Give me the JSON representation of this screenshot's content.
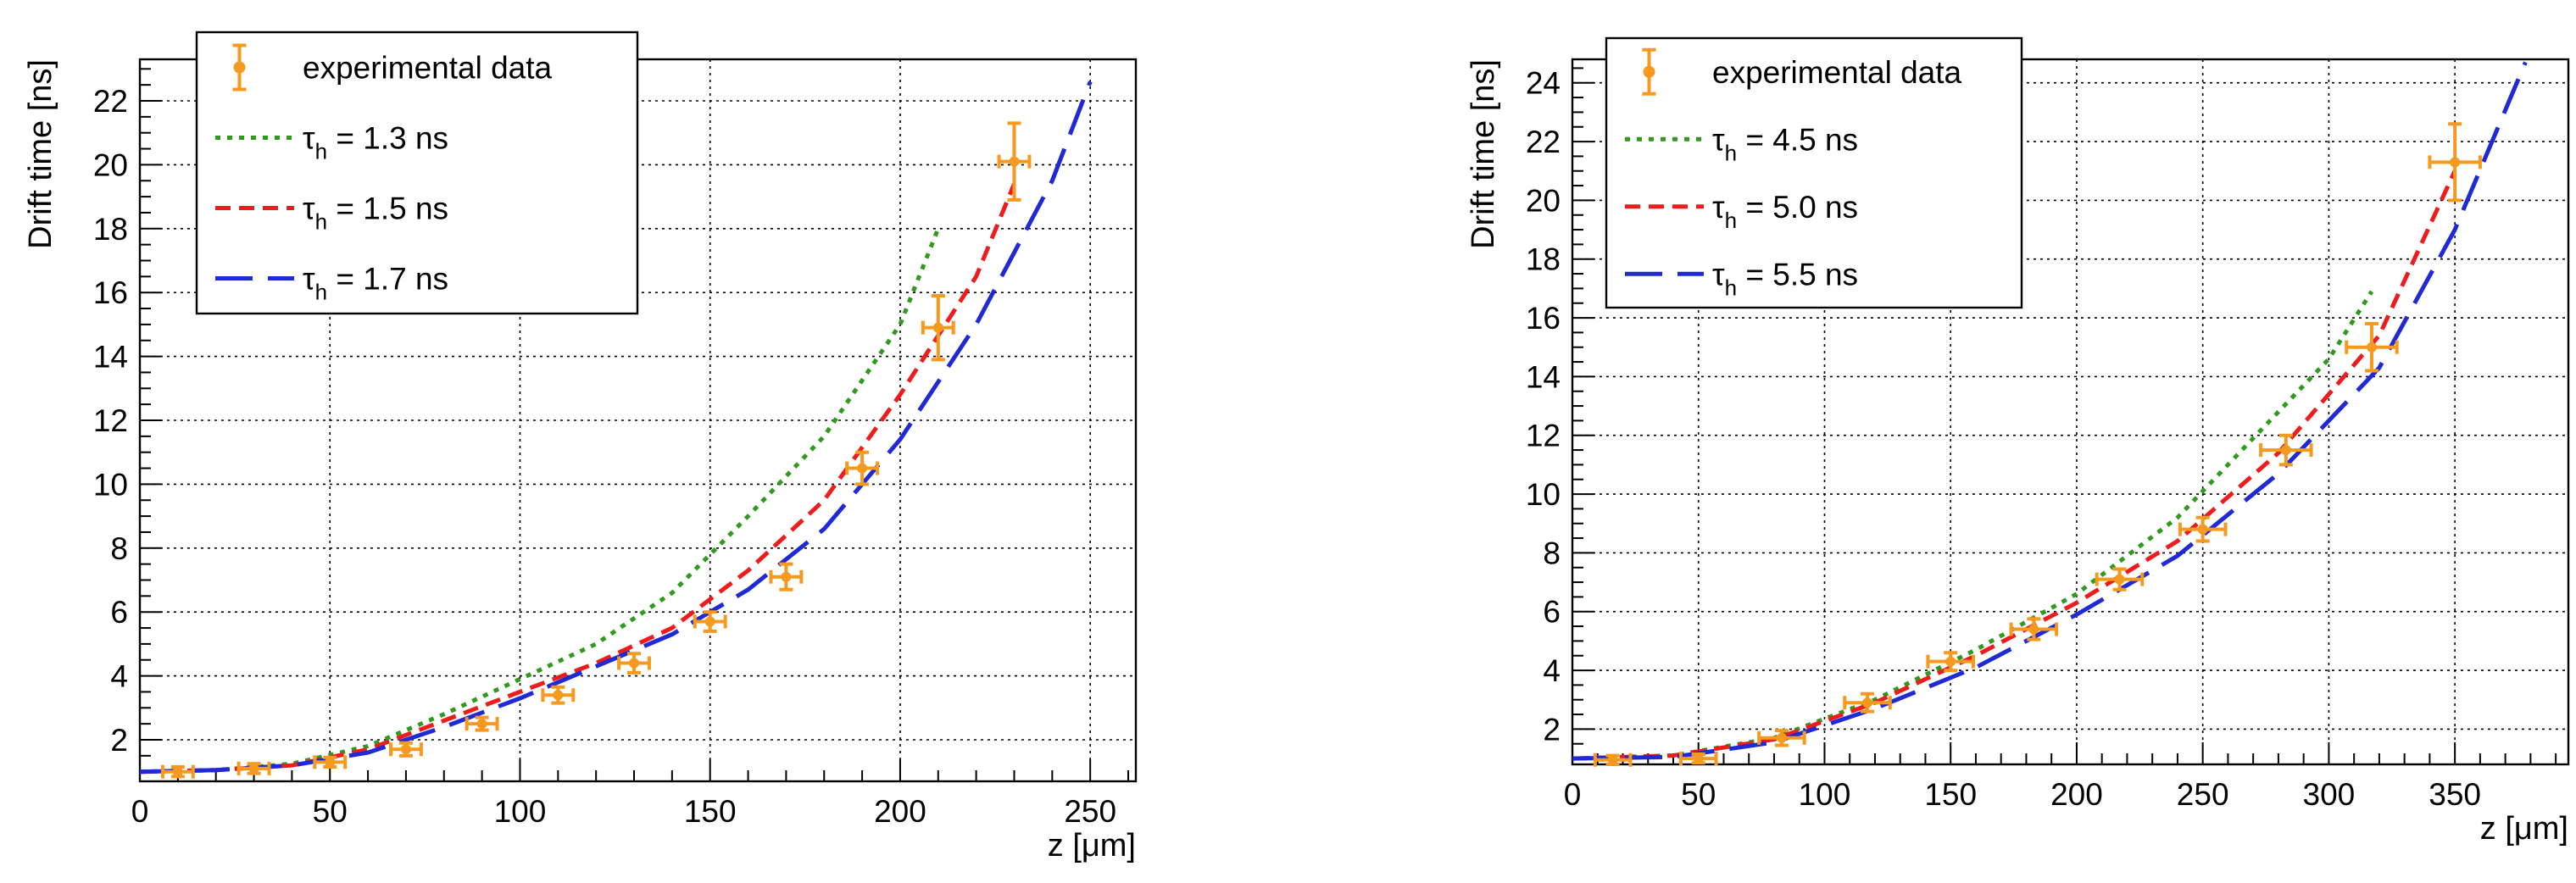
{
  "chart_data": [
    {
      "type": "line",
      "xlabel": "z [μm]",
      "ylabel": "Drift time [ns]",
      "xlim": [
        0,
        262
      ],
      "ylim": [
        0.7,
        23.3
      ],
      "xticks": [
        0,
        50,
        100,
        150,
        200,
        250
      ],
      "yticks": [
        2,
        4,
        6,
        8,
        10,
        12,
        14,
        16,
        18,
        20,
        22
      ],
      "grid": true,
      "legend_position": "top-left",
      "series": [
        {
          "name": "experimental data",
          "legend_label": "experimental data",
          "kind": "errorbar",
          "color": "#f59a1f",
          "points": [
            {
              "x": 10,
              "y": 1.0,
              "xerr": 4,
              "yerr": 0.15
            },
            {
              "x": 30,
              "y": 1.1,
              "xerr": 4,
              "yerr": 0.15
            },
            {
              "x": 50,
              "y": 1.3,
              "xerr": 4,
              "yerr": 0.15
            },
            {
              "x": 70,
              "y": 1.7,
              "xerr": 4,
              "yerr": 0.2
            },
            {
              "x": 90,
              "y": 2.5,
              "xerr": 4,
              "yerr": 0.2
            },
            {
              "x": 110,
              "y": 3.4,
              "xerr": 4,
              "yerr": 0.25
            },
            {
              "x": 130,
              "y": 4.4,
              "xerr": 4,
              "yerr": 0.3
            },
            {
              "x": 150,
              "y": 5.7,
              "xerr": 4,
              "yerr": 0.3
            },
            {
              "x": 170,
              "y": 7.1,
              "xerr": 4,
              "yerr": 0.4
            },
            {
              "x": 190,
              "y": 10.5,
              "xerr": 4,
              "yerr": 0.5
            },
            {
              "x": 210,
              "y": 14.9,
              "xerr": 4,
              "yerr": 1.0
            },
            {
              "x": 230,
              "y": 20.1,
              "xerr": 4,
              "yerr": 1.2
            }
          ]
        },
        {
          "name": "tau_h = 1.3 ns",
          "legend_symbol": "τ",
          "legend_sub": "h",
          "legend_rest": " = 1.3 ns",
          "kind": "line",
          "color": "#2f9a1c",
          "dash": "dot",
          "x": [
            0,
            20,
            40,
            60,
            80,
            100,
            120,
            140,
            160,
            180,
            200,
            210
          ],
          "y": [
            1.0,
            1.05,
            1.25,
            1.8,
            2.8,
            3.9,
            5.0,
            6.6,
            9.0,
            11.5,
            15.0,
            18.0
          ]
        },
        {
          "name": "tau_h = 1.5 ns",
          "legend_symbol": "τ",
          "legend_sub": "h",
          "legend_rest": " = 1.5 ns",
          "kind": "line",
          "color": "#ee1c1c",
          "dash": "dash",
          "x": [
            0,
            20,
            40,
            60,
            80,
            100,
            120,
            140,
            160,
            180,
            200,
            220,
            230
          ],
          "y": [
            1.0,
            1.05,
            1.2,
            1.7,
            2.6,
            3.5,
            4.4,
            5.5,
            7.3,
            9.5,
            12.8,
            16.5,
            19.4
          ]
        },
        {
          "name": "tau_h = 1.7 ns",
          "legend_symbol": "τ",
          "legend_sub": "h",
          "legend_rest": " = 1.7 ns",
          "kind": "line",
          "color": "#1f2ad6",
          "dash": "longdash",
          "x": [
            0,
            20,
            40,
            60,
            80,
            100,
            120,
            140,
            160,
            180,
            200,
            220,
            240,
            250
          ],
          "y": [
            1.0,
            1.05,
            1.2,
            1.6,
            2.4,
            3.3,
            4.3,
            5.3,
            6.7,
            8.6,
            11.4,
            15.0,
            19.5,
            22.6
          ]
        }
      ]
    },
    {
      "type": "line",
      "xlabel": "z [μm]",
      "ylabel": "Drift time [ns]",
      "xlim": [
        0,
        395
      ],
      "ylim": [
        0.8,
        24.8
      ],
      "xticks": [
        0,
        50,
        100,
        150,
        200,
        250,
        300,
        350
      ],
      "yticks": [
        2,
        4,
        6,
        8,
        10,
        12,
        14,
        16,
        18,
        20,
        22,
        24
      ],
      "grid": true,
      "legend_position": "top-left",
      "series": [
        {
          "name": "experimental data",
          "legend_label": "experimental data",
          "kind": "errorbar",
          "color": "#f59a1f",
          "points": [
            {
              "x": 16,
              "y": 0.95,
              "xerr": 7,
              "yerr": 0.15
            },
            {
              "x": 50,
              "y": 1.0,
              "xerr": 7,
              "yerr": 0.15
            },
            {
              "x": 83,
              "y": 1.7,
              "xerr": 9,
              "yerr": 0.25
            },
            {
              "x": 117,
              "y": 2.9,
              "xerr": 9,
              "yerr": 0.3
            },
            {
              "x": 150,
              "y": 4.3,
              "xerr": 9,
              "yerr": 0.3
            },
            {
              "x": 183,
              "y": 5.4,
              "xerr": 9,
              "yerr": 0.35
            },
            {
              "x": 217,
              "y": 7.1,
              "xerr": 9,
              "yerr": 0.35
            },
            {
              "x": 250,
              "y": 8.8,
              "xerr": 9,
              "yerr": 0.4
            },
            {
              "x": 283,
              "y": 11.5,
              "xerr": 10,
              "yerr": 0.5
            },
            {
              "x": 317,
              "y": 15.0,
              "xerr": 10,
              "yerr": 0.8
            },
            {
              "x": 350,
              "y": 21.3,
              "xerr": 10,
              "yerr": 1.3
            }
          ]
        },
        {
          "name": "tau_h = 4.5 ns",
          "legend_symbol": "τ",
          "legend_sub": "h",
          "legend_rest": " = 4.5 ns",
          "kind": "line",
          "color": "#2f9a1c",
          "dash": "dot",
          "x": [
            0,
            40,
            80,
            120,
            160,
            200,
            240,
            280,
            300,
            317
          ],
          "y": [
            1.0,
            1.1,
            1.7,
            3.0,
            4.7,
            6.6,
            9.2,
            12.8,
            14.6,
            16.9
          ]
        },
        {
          "name": "tau_h = 5.0 ns",
          "legend_symbol": "τ",
          "legend_sub": "h",
          "legend_rest": " = 5.0 ns",
          "kind": "line",
          "color": "#ee1c1c",
          "dash": "dash",
          "x": [
            0,
            40,
            80,
            120,
            160,
            200,
            240,
            280,
            320,
            350
          ],
          "y": [
            1.0,
            1.1,
            1.65,
            2.9,
            4.5,
            6.3,
            8.4,
            11.4,
            15.4,
            21.0
          ]
        },
        {
          "name": "tau_h = 5.5 ns",
          "legend_symbol": "τ",
          "legend_sub": "h",
          "legend_rest": " = 5.5 ns",
          "kind": "line",
          "color": "#1f2ad6",
          "dash": "longdash",
          "x": [
            0,
            40,
            80,
            120,
            160,
            200,
            240,
            280,
            320,
            350,
            378
          ],
          "y": [
            1.0,
            1.05,
            1.55,
            2.7,
            4.1,
            5.9,
            7.9,
            10.7,
            14.3,
            19.0,
            24.7
          ]
        }
      ]
    }
  ]
}
